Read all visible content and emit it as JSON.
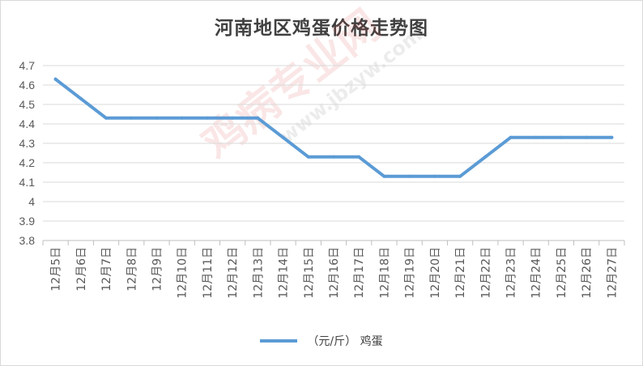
{
  "chart_data": {
    "type": "line",
    "title": "河南地区鸡蛋价格走势图",
    "categories": [
      "12月5日",
      "12月6日",
      "12月7日",
      "12月8日",
      "12月9日",
      "12月10日",
      "12月11日",
      "12月12日",
      "12月13日",
      "12月14日",
      "12月15日",
      "12月16日",
      "12月17日",
      "12月18日",
      "12月19日",
      "12月20日",
      "12月21日",
      "12月22日",
      "12月23日",
      "12月24日",
      "12月25日",
      "12月26日",
      "12月27日"
    ],
    "series": [
      {
        "name": "（元/斤）  鸡蛋",
        "color": "#5b9bd5",
        "values": [
          4.63,
          4.53,
          4.43,
          4.43,
          4.43,
          4.43,
          4.43,
          4.43,
          4.43,
          4.33,
          4.23,
          4.23,
          4.23,
          4.13,
          4.13,
          4.13,
          4.13,
          4.23,
          4.33,
          4.33,
          4.33,
          4.33,
          4.33
        ]
      }
    ],
    "ylim": [
      3.8,
      4.7
    ],
    "yticks": [
      "3.8",
      "3.9",
      "4",
      "4.1",
      "4.2",
      "4.3",
      "4.4",
      "4.5",
      "4.6",
      "4.7"
    ],
    "grid": true,
    "legend_position": "bottom"
  },
  "watermark": {
    "main": "鸡病专业网",
    "url": "www.jbzyw.com"
  }
}
